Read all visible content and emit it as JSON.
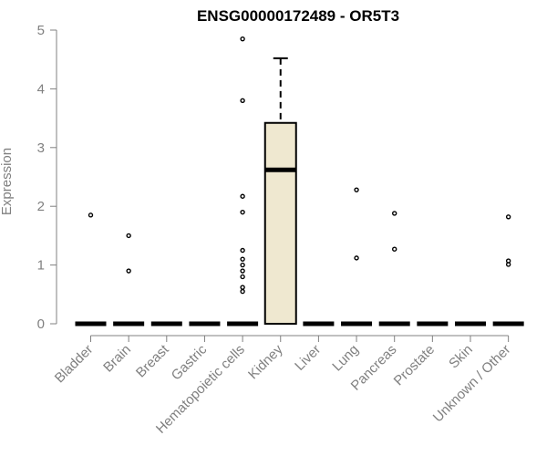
{
  "chart_data": {
    "type": "boxplot",
    "title": "ENSG00000172489 - OR5T3",
    "xlabel": "",
    "ylabel": "Expression",
    "ylim": [
      0,
      5
    ],
    "yticks": [
      0,
      1,
      2,
      3,
      4,
      5
    ],
    "grid": false,
    "colors": {
      "box_fill": "#efe8d0",
      "stroke": "#000000",
      "axis": "#808080"
    },
    "categories": [
      "Bladder",
      "Brain",
      "Breast",
      "Gastric",
      "Hematopoietic cells",
      "Kidney",
      "Liver",
      "Lung",
      "Pancreas",
      "Prostate",
      "Skin",
      "Unknown / Other"
    ],
    "boxes": [
      {
        "category": "Bladder",
        "q1": 0,
        "median": 0,
        "q3": 0,
        "whisker_low": 0,
        "whisker_high": 0,
        "outliers": [
          1.85
        ]
      },
      {
        "category": "Brain",
        "q1": 0,
        "median": 0,
        "q3": 0,
        "whisker_low": 0,
        "whisker_high": 0,
        "outliers": [
          1.5,
          0.9
        ]
      },
      {
        "category": "Breast",
        "q1": 0,
        "median": 0,
        "q3": 0,
        "whisker_low": 0,
        "whisker_high": 0,
        "outliers": []
      },
      {
        "category": "Gastric",
        "q1": 0,
        "median": 0,
        "q3": 0,
        "whisker_low": 0,
        "whisker_high": 0,
        "outliers": []
      },
      {
        "category": "Hematopoietic cells",
        "q1": 0,
        "median": 0,
        "q3": 0,
        "whisker_low": 0,
        "whisker_high": 0,
        "outliers": [
          4.85,
          3.8,
          2.17,
          1.9,
          1.25,
          1.1,
          1.0,
          0.9,
          0.8,
          0.62,
          0.55
        ]
      },
      {
        "category": "Kidney",
        "q1": 0,
        "median": 2.62,
        "q3": 3.42,
        "whisker_low": 0,
        "whisker_high": 4.52,
        "outliers": []
      },
      {
        "category": "Liver",
        "q1": 0,
        "median": 0,
        "q3": 0,
        "whisker_low": 0,
        "whisker_high": 0,
        "outliers": []
      },
      {
        "category": "Lung",
        "q1": 0,
        "median": 0,
        "q3": 0,
        "whisker_low": 0,
        "whisker_high": 0,
        "outliers": [
          2.28,
          1.12
        ]
      },
      {
        "category": "Pancreas",
        "q1": 0,
        "median": 0,
        "q3": 0,
        "whisker_low": 0,
        "whisker_high": 0,
        "outliers": [
          1.88,
          1.27
        ]
      },
      {
        "category": "Prostate",
        "q1": 0,
        "median": 0,
        "q3": 0,
        "whisker_low": 0,
        "whisker_high": 0,
        "outliers": []
      },
      {
        "category": "Skin",
        "q1": 0,
        "median": 0,
        "q3": 0,
        "whisker_low": 0,
        "whisker_high": 0,
        "outliers": []
      },
      {
        "category": "Unknown / Other",
        "q1": 0,
        "median": 0,
        "q3": 0,
        "whisker_low": 0,
        "whisker_high": 0,
        "outliers": [
          1.82,
          1.07,
          1.01
        ]
      }
    ]
  }
}
